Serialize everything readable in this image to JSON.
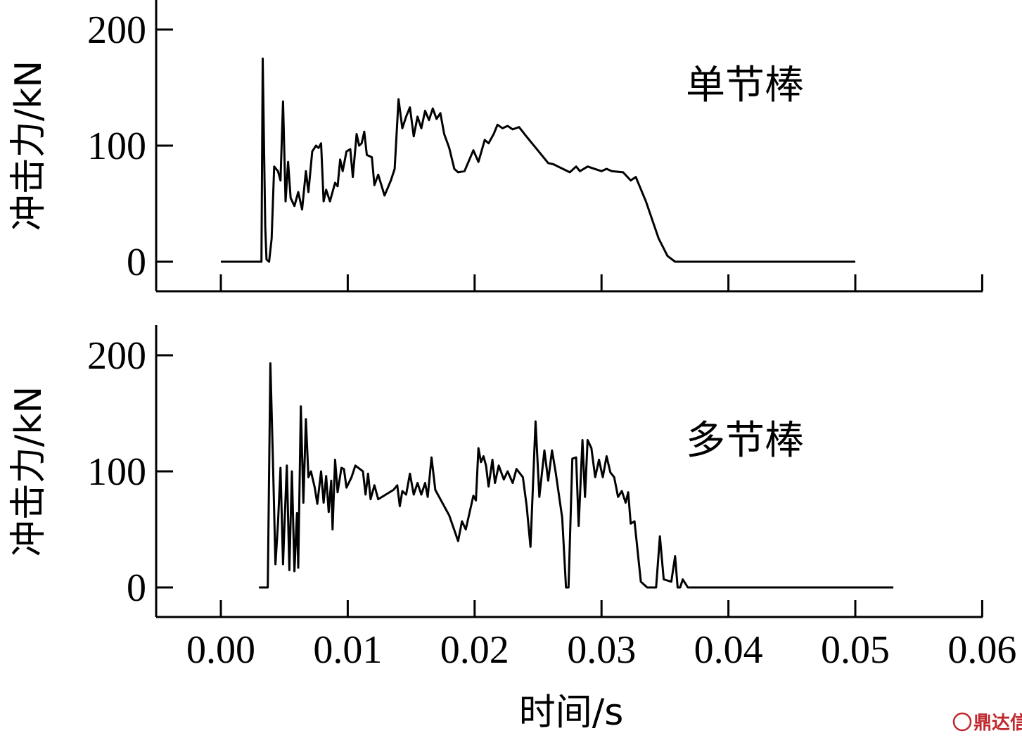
{
  "chart_data": [
    {
      "type": "line",
      "ylabel": "冲击力/kN",
      "xlabel": "",
      "yticks": [
        0,
        100,
        200
      ],
      "xticks": [
        0.0,
        0.01,
        0.02,
        0.03,
        0.04,
        0.05,
        0.06
      ],
      "xlim": [
        -0.005,
        0.06
      ],
      "ylim": [
        -25,
        225
      ],
      "series": [
        {
          "name": "单节棒",
          "points": [
            [
              0.0,
              0
            ],
            [
              0.0032,
              0
            ],
            [
              0.0033,
              175
            ],
            [
              0.0035,
              30
            ],
            [
              0.0036,
              2
            ],
            [
              0.0038,
              0
            ],
            [
              0.004,
              20
            ],
            [
              0.0042,
              82
            ],
            [
              0.0045,
              78
            ],
            [
              0.0047,
              70
            ],
            [
              0.0049,
              138
            ],
            [
              0.0051,
              52
            ],
            [
              0.0053,
              86
            ],
            [
              0.0055,
              55
            ],
            [
              0.0058,
              48
            ],
            [
              0.0061,
              60
            ],
            [
              0.0064,
              45
            ],
            [
              0.0067,
              78
            ],
            [
              0.0069,
              60
            ],
            [
              0.0072,
              95
            ],
            [
              0.0075,
              100
            ],
            [
              0.0077,
              98
            ],
            [
              0.0079,
              102
            ],
            [
              0.0081,
              52
            ],
            [
              0.0083,
              62
            ],
            [
              0.0086,
              52
            ],
            [
              0.009,
              68
            ],
            [
              0.0092,
              65
            ],
            [
              0.0094,
              88
            ],
            [
              0.0096,
              78
            ],
            [
              0.0099,
              95
            ],
            [
              0.0102,
              97
            ],
            [
              0.0104,
              73
            ],
            [
              0.0107,
              110
            ],
            [
              0.0109,
              100
            ],
            [
              0.0111,
              102
            ],
            [
              0.0113,
              112
            ],
            [
              0.0115,
              92
            ],
            [
              0.0119,
              90
            ],
            [
              0.0121,
              66
            ],
            [
              0.0124,
              75
            ],
            [
              0.0129,
              57
            ],
            [
              0.0134,
              70
            ],
            [
              0.0137,
              80
            ],
            [
              0.014,
              140
            ],
            [
              0.0143,
              115
            ],
            [
              0.0146,
              125
            ],
            [
              0.0149,
              133
            ],
            [
              0.0152,
              108
            ],
            [
              0.0155,
              125
            ],
            [
              0.0158,
              115
            ],
            [
              0.0161,
              130
            ],
            [
              0.0164,
              122
            ],
            [
              0.0167,
              132
            ],
            [
              0.017,
              123
            ],
            [
              0.0173,
              128
            ],
            [
              0.0176,
              110
            ],
            [
              0.018,
              98
            ],
            [
              0.0184,
              80
            ],
            [
              0.0187,
              77
            ],
            [
              0.0192,
              78
            ],
            [
              0.0199,
              96
            ],
            [
              0.0203,
              86
            ],
            [
              0.0208,
              105
            ],
            [
              0.0211,
              102
            ],
            [
              0.0215,
              110
            ],
            [
              0.0218,
              118
            ],
            [
              0.0222,
              115
            ],
            [
              0.0226,
              117
            ],
            [
              0.023,
              114
            ],
            [
              0.0235,
              116
            ],
            [
              0.024,
              109
            ],
            [
              0.0258,
              85
            ],
            [
              0.0262,
              84
            ],
            [
              0.0275,
              77
            ],
            [
              0.028,
              82
            ],
            [
              0.0283,
              78
            ],
            [
              0.0289,
              82
            ],
            [
              0.03,
              78
            ],
            [
              0.0304,
              80
            ],
            [
              0.0308,
              78
            ],
            [
              0.0317,
              77
            ],
            [
              0.0323,
              70
            ],
            [
              0.0327,
              73
            ],
            [
              0.0335,
              52
            ],
            [
              0.0345,
              20
            ],
            [
              0.0352,
              5
            ],
            [
              0.0358,
              0
            ],
            [
              0.05,
              0
            ]
          ]
        }
      ]
    },
    {
      "type": "line",
      "ylabel": "冲击力/kN",
      "xlabel": "时间/s",
      "yticks": [
        0,
        100,
        200
      ],
      "xticks": [
        0.0,
        0.01,
        0.02,
        0.03,
        0.04,
        0.05,
        0.06
      ],
      "xlim": [
        -0.005,
        0.06
      ],
      "ylim": [
        -25,
        225
      ],
      "series": [
        {
          "name": "多节棒",
          "points": [
            [
              0.003,
              0
            ],
            [
              0.0037,
              0
            ],
            [
              0.0039,
              193
            ],
            [
              0.0041,
              110
            ],
            [
              0.0043,
              20
            ],
            [
              0.0045,
              55
            ],
            [
              0.0047,
              103
            ],
            [
              0.0049,
              20
            ],
            [
              0.005,
              50
            ],
            [
              0.0052,
              105
            ],
            [
              0.0054,
              15
            ],
            [
              0.0056,
              100
            ],
            [
              0.0058,
              14
            ],
            [
              0.006,
              64
            ],
            [
              0.0061,
              17
            ],
            [
              0.0063,
              156
            ],
            [
              0.0065,
              73
            ],
            [
              0.0067,
              145
            ],
            [
              0.0069,
              95
            ],
            [
              0.0071,
              100
            ],
            [
              0.0074,
              86
            ],
            [
              0.0076,
              72
            ],
            [
              0.0079,
              100
            ],
            [
              0.0081,
              73
            ],
            [
              0.0083,
              96
            ],
            [
              0.0085,
              65
            ],
            [
              0.0087,
              92
            ],
            [
              0.0088,
              50
            ],
            [
              0.009,
              110
            ],
            [
              0.0092,
              82
            ],
            [
              0.0095,
              103
            ],
            [
              0.0097,
              102
            ],
            [
              0.0099,
              86
            ],
            [
              0.0103,
              95
            ],
            [
              0.0106,
              105
            ],
            [
              0.0112,
              100
            ],
            [
              0.0114,
              80
            ],
            [
              0.0116,
              98
            ],
            [
              0.0118,
              76
            ],
            [
              0.0121,
              88
            ],
            [
              0.0124,
              76
            ],
            [
              0.013,
              80
            ],
            [
              0.0136,
              84
            ],
            [
              0.0139,
              88
            ],
            [
              0.0141,
              70
            ],
            [
              0.0143,
              83
            ],
            [
              0.0146,
              80
            ],
            [
              0.0149,
              98
            ],
            [
              0.0152,
              80
            ],
            [
              0.0155,
              90
            ],
            [
              0.0158,
              80
            ],
            [
              0.0161,
              90
            ],
            [
              0.0163,
              78
            ],
            [
              0.0166,
              112
            ],
            [
              0.0169,
              84
            ],
            [
              0.0175,
              72
            ],
            [
              0.018,
              62
            ],
            [
              0.0187,
              40
            ],
            [
              0.019,
              57
            ],
            [
              0.0193,
              50
            ],
            [
              0.0199,
              79
            ],
            [
              0.0201,
              75
            ],
            [
              0.0203,
              120
            ],
            [
              0.0205,
              108
            ],
            [
              0.0207,
              113
            ],
            [
              0.0209,
              105
            ],
            [
              0.0211,
              87
            ],
            [
              0.0214,
              110
            ],
            [
              0.0216,
              90
            ],
            [
              0.0219,
              105
            ],
            [
              0.0223,
              93
            ],
            [
              0.0226,
              100
            ],
            [
              0.023,
              90
            ],
            [
              0.0233,
              102
            ],
            [
              0.0238,
              95
            ],
            [
              0.0241,
              70
            ],
            [
              0.0244,
              35
            ],
            [
              0.0248,
              143
            ],
            [
              0.0251,
              78
            ],
            [
              0.0255,
              118
            ],
            [
              0.0258,
              92
            ],
            [
              0.0261,
              118
            ],
            [
              0.0264,
              98
            ],
            [
              0.0269,
              60
            ],
            [
              0.0272,
              0
            ],
            [
              0.0274,
              0
            ],
            [
              0.0277,
              111
            ],
            [
              0.028,
              112
            ],
            [
              0.0282,
              53
            ],
            [
              0.0285,
              127
            ],
            [
              0.0287,
              78
            ],
            [
              0.0289,
              127
            ],
            [
              0.0292,
              120
            ],
            [
              0.0295,
              95
            ],
            [
              0.0298,
              110
            ],
            [
              0.0301,
              95
            ],
            [
              0.0304,
              113
            ],
            [
              0.0307,
              99
            ],
            [
              0.031,
              95
            ],
            [
              0.0313,
              78
            ],
            [
              0.0316,
              83
            ],
            [
              0.0319,
              73
            ],
            [
              0.0321,
              82
            ],
            [
              0.0323,
              55
            ],
            [
              0.0326,
              57
            ],
            [
              0.0331,
              5
            ],
            [
              0.0336,
              0
            ],
            [
              0.0343,
              0
            ],
            [
              0.0346,
              44
            ],
            [
              0.0349,
              7
            ],
            [
              0.0355,
              5
            ],
            [
              0.0358,
              27
            ],
            [
              0.036,
              0
            ],
            [
              0.0362,
              0
            ],
            [
              0.0364,
              7
            ],
            [
              0.0368,
              0
            ],
            [
              0.053,
              0
            ]
          ]
        }
      ]
    }
  ],
  "watermark": {
    "text": "鼎达信",
    "color": "#c0282d"
  }
}
